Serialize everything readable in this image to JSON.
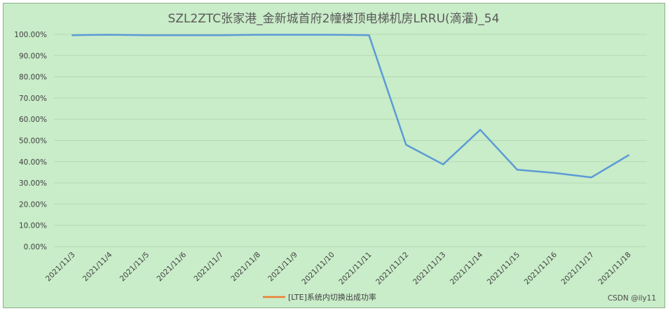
{
  "chart_data": {
    "type": "line",
    "title": "SZL2ZTC张家港_金新城首府2幢楼顶电梯机房LRRU(滴灌)_54",
    "categories": [
      "2021/11/3",
      "2021/11/4",
      "2021/11/5",
      "2021/11/6",
      "2021/11/7",
      "2021/11/8",
      "2021/11/9",
      "2021/11/10",
      "2021/11/11",
      "2021/11/12",
      "2021/11/13",
      "2021/11/14",
      "2021/11/15",
      "2021/11/16",
      "2021/11/17",
      "2021/11/18"
    ],
    "series": [
      {
        "name": "[LTE]系统内切换出成功率",
        "values": [
          99.6,
          99.8,
          99.6,
          99.6,
          99.6,
          99.8,
          99.8,
          99.8,
          99.6,
          48.0,
          38.7,
          55.0,
          36.2,
          34.7,
          32.6,
          43.0
        ],
        "line_color": "#5b9bd5",
        "legend_color": "#ed7d31"
      }
    ],
    "y_ticks": [
      "0.00%",
      "10.00%",
      "20.00%",
      "30.00%",
      "40.00%",
      "50.00%",
      "60.00%",
      "70.00%",
      "80.00%",
      "90.00%",
      "100.00%"
    ],
    "ylim": [
      0,
      100
    ],
    "grid": true,
    "legend_position": "bottom"
  },
  "watermark": "CSDN @ily11",
  "colors": {
    "background": "#c9ecc9",
    "gridline": "#b5d8b5"
  }
}
